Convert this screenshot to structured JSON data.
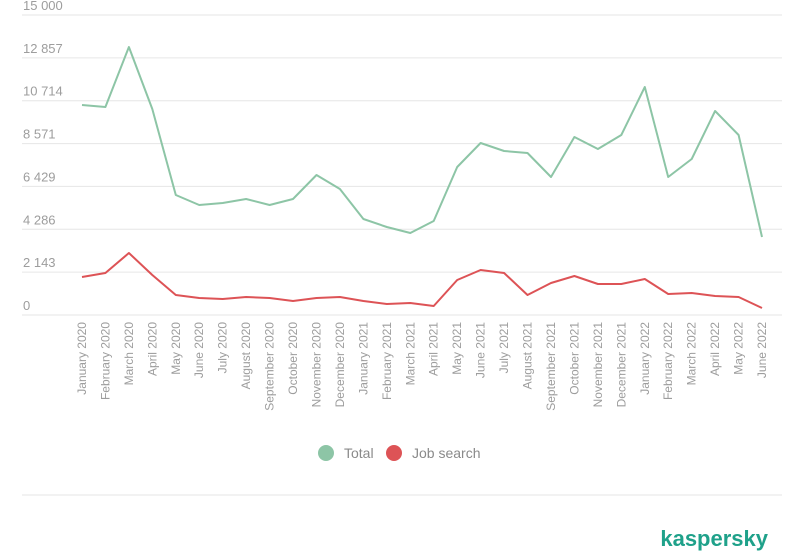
{
  "colors": {
    "total": "#8dc5a6",
    "job_search": "#dd5356",
    "grid": "#e6e6e6",
    "tick_text": "#9d9d9d",
    "legend_text": "#8a8a8a",
    "brand": "#1fa18a"
  },
  "brand": {
    "logo_text": "kaspersky"
  },
  "chart_data": {
    "type": "line",
    "title": "",
    "xlabel": "",
    "ylabel": "",
    "ylim": [
      0,
      15000
    ],
    "y_ticks": [
      0,
      2143,
      4286,
      6429,
      8571,
      10714,
      12857,
      15000
    ],
    "y_tick_labels": [
      "0",
      "2 143",
      "4 286",
      "6 429",
      "8 571",
      "10 714",
      "12 857",
      "15 000"
    ],
    "grid": true,
    "legend_position": "bottom-center",
    "categories": [
      "January 2020",
      "February 2020",
      "March 2020",
      "April 2020",
      "May 2020",
      "June 2020",
      "July 2020",
      "August 2020",
      "September 2020",
      "October 2020",
      "November 2020",
      "December 2020",
      "January 2021",
      "February 2021",
      "March 2021",
      "April 2021",
      "May 2021",
      "June 2021",
      "July 2021",
      "August 2021",
      "September 2021",
      "October 2021",
      "November 2021",
      "December 2021",
      "January 2022",
      "February 2022",
      "March 2022",
      "April 2022",
      "May 2022",
      "June 2022"
    ],
    "series": [
      {
        "name": "Total",
        "color_key": "total",
        "values": [
          10500,
          10400,
          13400,
          10300,
          6000,
          5500,
          5600,
          5800,
          5500,
          5800,
          7000,
          6300,
          4800,
          4400,
          4100,
          4700,
          7400,
          8600,
          8200,
          8100,
          6900,
          8900,
          8300,
          9000,
          11400,
          6900,
          7800,
          10200,
          9000,
          3900
        ]
      },
      {
        "name": "Job search",
        "color_key": "job_search",
        "values": [
          1900,
          2100,
          3100,
          2000,
          1000,
          850,
          800,
          900,
          850,
          700,
          850,
          900,
          700,
          550,
          600,
          450,
          1750,
          2250,
          2100,
          1000,
          1600,
          1950,
          1550,
          1550,
          1800,
          1050,
          1100,
          950,
          900,
          350
        ]
      }
    ]
  }
}
